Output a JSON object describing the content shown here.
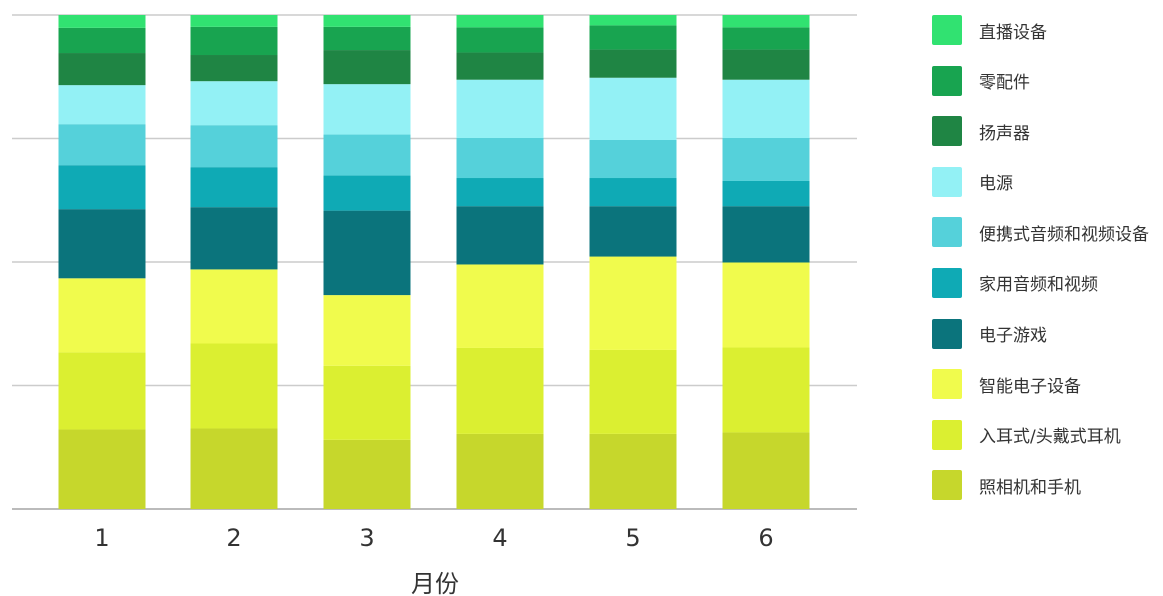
{
  "chart_data": {
    "type": "bar",
    "stacked": true,
    "xlabel": "月份",
    "ylabel": "",
    "categories": [
      "1",
      "2",
      "3",
      "4",
      "5",
      "6"
    ],
    "ylim": [
      0,
      100
    ],
    "grid": true,
    "legend_position": "right",
    "series": [
      {
        "name": "照相机和手机",
        "color": "#c6d72c",
        "values": [
          16.1,
          16.3,
          14.0,
          15.2,
          15.2,
          15.5
        ]
      },
      {
        "name": "入耳式/头戴式耳机",
        "color": "#dbef31",
        "values": [
          15.6,
          17.2,
          15.0,
          17.4,
          17.0,
          17.2
        ]
      },
      {
        "name": "智能电子设备",
        "color": "#f0fb4d",
        "values": [
          15.0,
          15.0,
          14.3,
          16.9,
          18.9,
          17.2
        ]
      },
      {
        "name": "电子游戏",
        "color": "#0b747c",
        "values": [
          14.0,
          12.6,
          17.1,
          11.8,
          10.2,
          11.4
        ]
      },
      {
        "name": "家用音频和视频",
        "color": "#0faab5",
        "values": [
          8.9,
          8.1,
          7.1,
          5.7,
          5.7,
          5.1
        ]
      },
      {
        "name": "便携式音频和视频设备",
        "color": "#55d1da",
        "values": [
          8.3,
          8.5,
          8.3,
          8.1,
          7.7,
          8.7
        ]
      },
      {
        "name": "电源",
        "color": "#93f1f5",
        "values": [
          7.9,
          8.9,
          10.2,
          11.8,
          12.6,
          11.8
        ]
      },
      {
        "name": "扬声器",
        "color": "#1f8544",
        "values": [
          6.5,
          5.3,
          6.9,
          5.5,
          5.7,
          6.1
        ]
      },
      {
        "name": "零配件",
        "color": "#18a450",
        "values": [
          5.1,
          5.7,
          4.7,
          5.1,
          4.9,
          4.5
        ]
      },
      {
        "name": "直播设备",
        "color": "#31e271",
        "values": [
          2.6,
          2.4,
          2.4,
          2.5,
          2.1,
          2.5
        ]
      }
    ]
  }
}
